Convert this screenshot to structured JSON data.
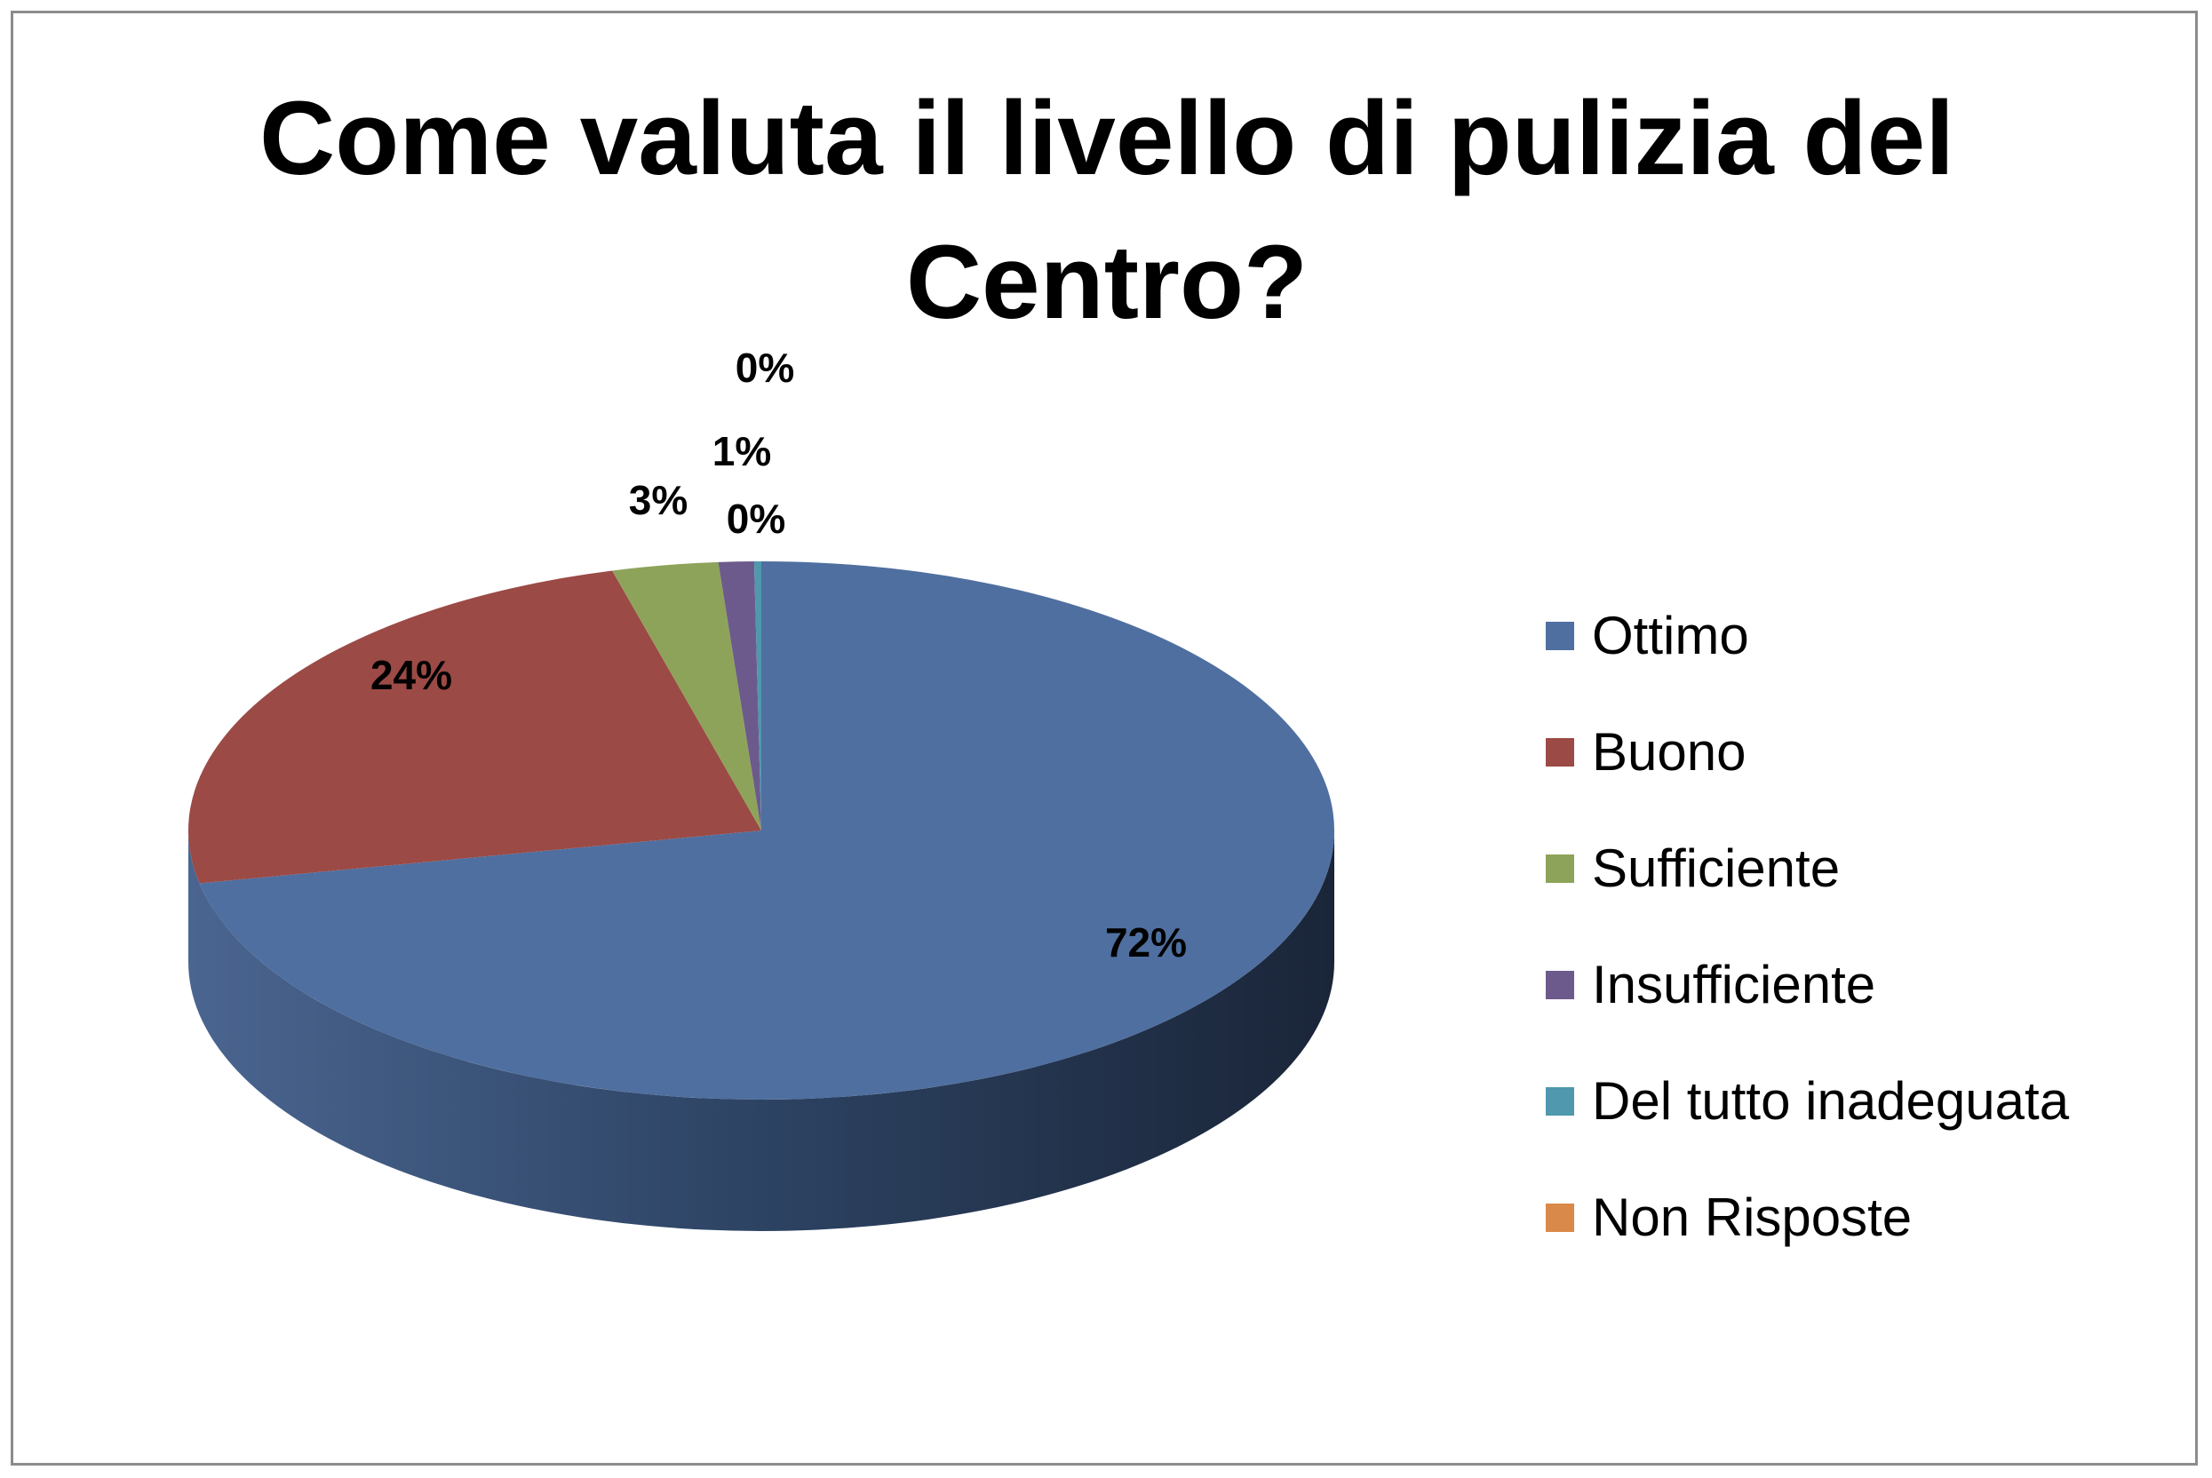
{
  "chart_data": {
    "type": "pie",
    "title_lines": [
      "Come valuta il livello di pulizia del",
      "Centro?"
    ],
    "slices": [
      {
        "name": "Ottimo",
        "value": 72,
        "label": "72%",
        "color": "#4F6FA0"
      },
      {
        "name": "Buono",
        "value": 24,
        "label": "24%",
        "color": "#9B4A46"
      },
      {
        "name": "Sufficiente",
        "value": 3,
        "label": "3%",
        "color": "#8EA35A"
      },
      {
        "name": "Insufficiente",
        "value": 1,
        "label": "1%",
        "color": "#6D5A8C"
      },
      {
        "name": "Del tutto inadeguata",
        "value": 0.2,
        "label": "0%",
        "color": "#4F98AD"
      },
      {
        "name": "Non Risposte",
        "value": 0,
        "label": "0%",
        "color": "#D9894A"
      }
    ],
    "legend_position": "right",
    "style": "3d"
  }
}
